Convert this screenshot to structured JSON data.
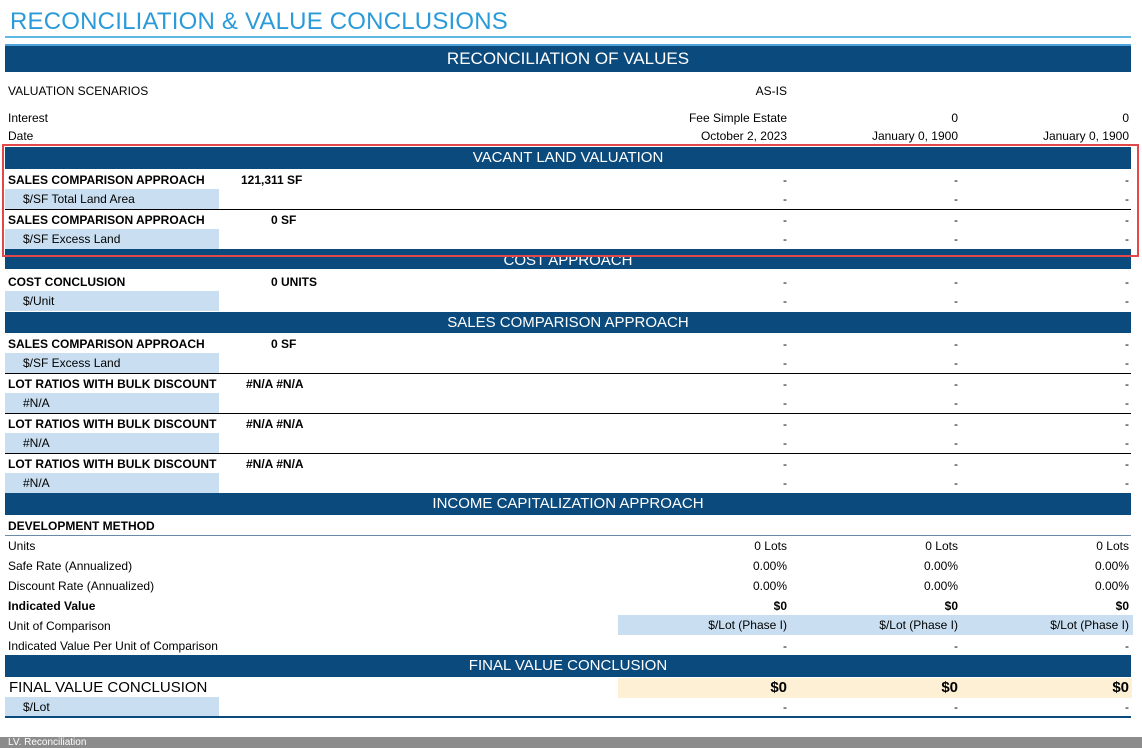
{
  "page": {
    "title": "RECONCILIATION & VALUE CONCLUSIONS"
  },
  "header": {
    "bar": "RECONCILIATION OF VALUES",
    "scenarios_label": "VALUATION SCENARIOS",
    "scenario_1": "AS-IS",
    "interest_label": "Interest",
    "interest": [
      "Fee Simple Estate",
      "0",
      "0"
    ],
    "date_label": "Date",
    "date": [
      "October 2, 2023",
      "January 0, 1900",
      "January 0, 1900"
    ]
  },
  "vacant_land": {
    "bar": "VACANT LAND VALUATION",
    "rows": [
      {
        "label": "SALES COMPARISON APPROACH",
        "qty": "121,311 SF",
        "vals": [
          "-",
          "-",
          "-"
        ],
        "sub_label": "$/SF Total Land Area",
        "sub_vals": [
          "-",
          "-",
          "-"
        ]
      },
      {
        "label": "SALES COMPARISON APPROACH",
        "qty": "0 SF",
        "vals": [
          "-",
          "-",
          "-"
        ],
        "sub_label": "$/SF Excess Land",
        "sub_vals": [
          "-",
          "-",
          "-"
        ]
      }
    ]
  },
  "cost": {
    "bar": "COST APPROACH",
    "label": "COST CONCLUSION",
    "qty": "0 UNITS",
    "vals": [
      "-",
      "-",
      "-"
    ],
    "sub_label": "$/Unit",
    "sub_vals": [
      "-",
      "-",
      "-"
    ]
  },
  "sales": {
    "bar": "SALES COMPARISON APPROACH",
    "rows": [
      {
        "label": "SALES COMPARISON APPROACH",
        "qty": "0 SF",
        "vals": [
          "-",
          "-",
          "-"
        ],
        "sub_label": "$/SF Excess Land",
        "sub_vals": [
          "-",
          "-",
          "-"
        ]
      },
      {
        "label": "LOT RATIOS WITH BULK DISCOUNT",
        "qty": "#N/A #N/A",
        "vals": [
          "-",
          "-",
          "-"
        ],
        "sub_label": "#N/A",
        "sub_vals": [
          "-",
          "-",
          "-"
        ]
      },
      {
        "label": "LOT RATIOS WITH BULK DISCOUNT",
        "qty": "#N/A #N/A",
        "vals": [
          "-",
          "-",
          "-"
        ],
        "sub_label": "#N/A",
        "sub_vals": [
          "-",
          "-",
          "-"
        ]
      },
      {
        "label": "LOT RATIOS WITH BULK DISCOUNT",
        "qty": "#N/A #N/A",
        "vals": [
          "-",
          "-",
          "-"
        ],
        "sub_label": "#N/A",
        "sub_vals": [
          "-",
          "-",
          "-"
        ]
      }
    ]
  },
  "income": {
    "bar": "INCOME CAPITALIZATION APPROACH",
    "method": "DEVELOPMENT METHOD",
    "units_label": "Units",
    "units": [
      "0 Lots",
      "0 Lots",
      "0 Lots"
    ],
    "safe_label": "Safe Rate (Annualized)",
    "safe": [
      "0.00%",
      "0.00%",
      "0.00%"
    ],
    "discount_label": "Discount Rate (Annualized)",
    "discount": [
      "0.00%",
      "0.00%",
      "0.00%"
    ],
    "indicated_label": "Indicated Value",
    "indicated": [
      "$0",
      "$0",
      "$0"
    ],
    "uoc_label": "Unit of Comparison",
    "uoc": [
      "$/Lot (Phase I)",
      "$/Lot (Phase I)",
      "$/Lot (Phase I)"
    ],
    "per_unit_label": "Indicated Value Per Unit of Comparison",
    "per_unit": [
      "-",
      "-",
      "-"
    ]
  },
  "final": {
    "bar": "FINAL VALUE CONCLUSION",
    "label": "FINAL VALUE CONCLUSION",
    "vals": [
      "$0",
      "$0",
      "$0"
    ],
    "sub_label": "$/Lot",
    "sub_vals": [
      "-",
      "-",
      "-"
    ]
  },
  "statusbar": {
    "sheet": "LV. Reconciliation"
  },
  "colors": {
    "header_bar": "#0b4a7c",
    "title": "#2a9bd8",
    "input_fill": "#c9dff1",
    "final_fill": "#fdf0d5",
    "highlight": "#e2474a"
  }
}
